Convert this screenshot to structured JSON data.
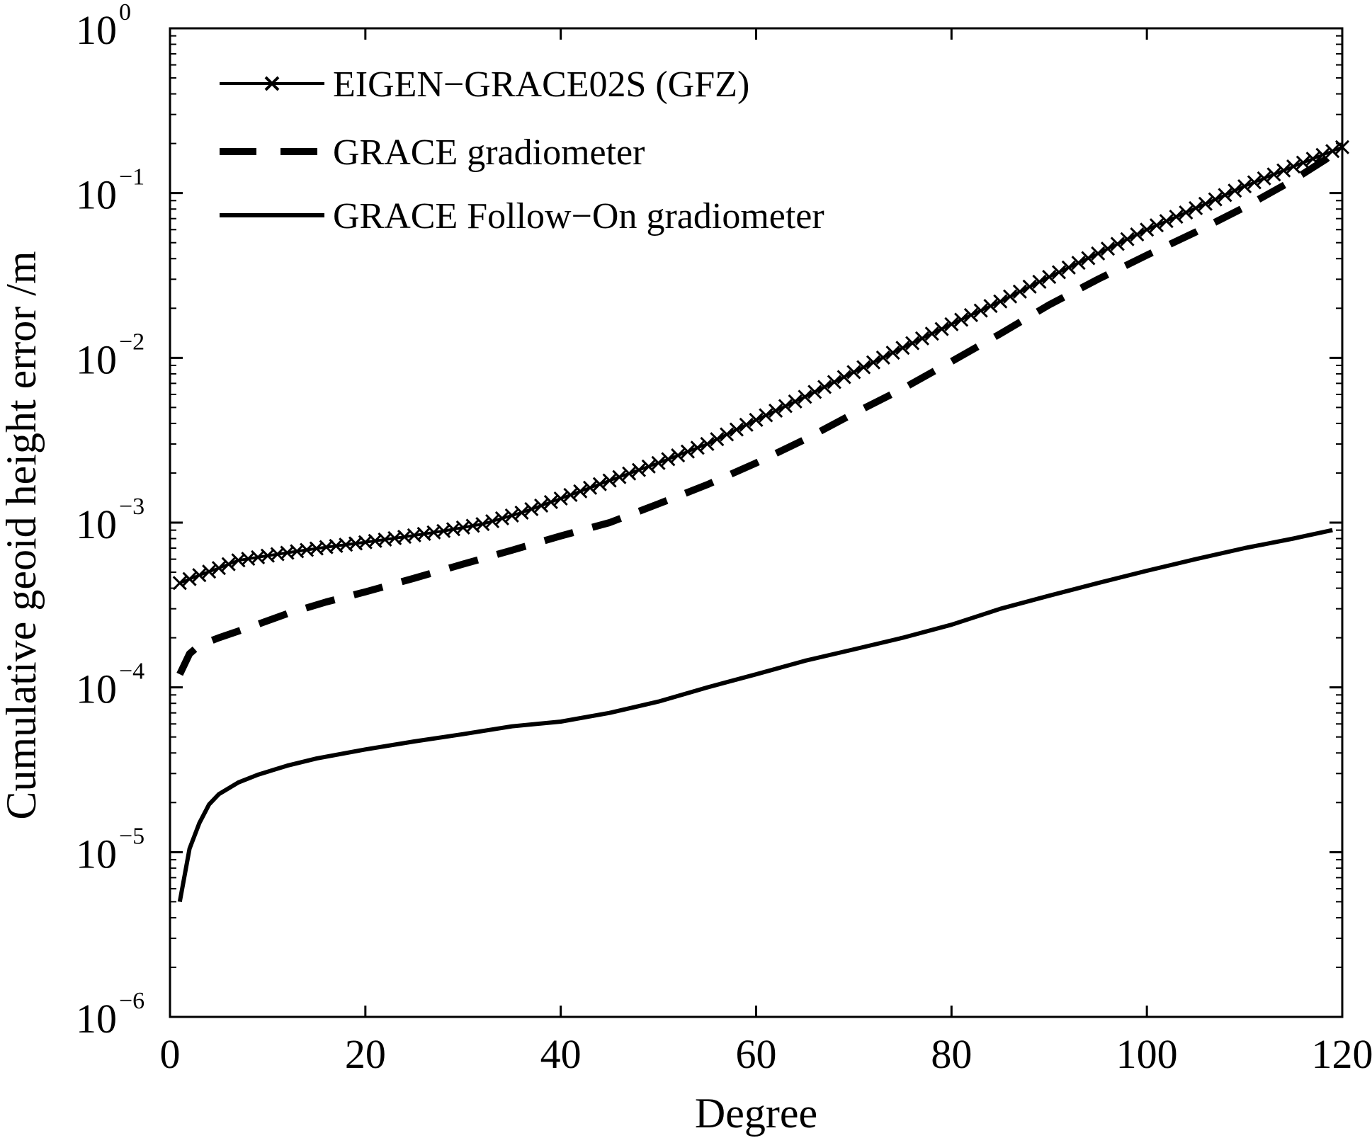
{
  "chart_data": {
    "type": "line",
    "xlabel": "Degree",
    "ylabel": "Cumulative geoid height error  /m",
    "xlim": [
      0,
      120
    ],
    "ylim": [
      1e-06,
      1
    ],
    "yscale": "log",
    "xticks": [
      {
        "value": 0,
        "label": "0"
      },
      {
        "value": 20,
        "label": "20"
      },
      {
        "value": 40,
        "label": "40"
      },
      {
        "value": 60,
        "label": "60"
      },
      {
        "value": 80,
        "label": "80"
      },
      {
        "value": 100,
        "label": "100"
      },
      {
        "value": 120,
        "label": "120"
      }
    ],
    "yticks": [
      {
        "exp": 0,
        "base": "10",
        "sup": "0"
      },
      {
        "exp": -1,
        "base": "10",
        "sup": "−1"
      },
      {
        "exp": -2,
        "base": "10",
        "sup": "−2"
      },
      {
        "exp": -3,
        "base": "10",
        "sup": "−3"
      },
      {
        "exp": -4,
        "base": "10",
        "sup": "−4"
      },
      {
        "exp": -5,
        "base": "10",
        "sup": "−5"
      },
      {
        "exp": -6,
        "base": "10",
        "sup": "−6"
      }
    ],
    "grid": false,
    "legend_position": "top-left",
    "series": [
      {
        "name": "EIGEN−GRACE02S (GFZ)",
        "style": "solid-x-markers",
        "color": "#000000",
        "points": [
          [
            1,
            0.00043
          ],
          [
            3,
            0.00048
          ],
          [
            5,
            0.00053
          ],
          [
            7,
            0.00059
          ],
          [
            10,
            0.00063
          ],
          [
            13,
            0.00067
          ],
          [
            16,
            0.00071
          ],
          [
            20,
            0.00076
          ],
          [
            24,
            0.00082
          ],
          [
            28,
            0.00089
          ],
          [
            32,
            0.00098
          ],
          [
            36,
            0.00115
          ],
          [
            40,
            0.0014
          ],
          [
            45,
            0.0018
          ],
          [
            50,
            0.0023
          ],
          [
            55,
            0.003
          ],
          [
            60,
            0.0042
          ],
          [
            65,
            0.0058
          ],
          [
            70,
            0.0082
          ],
          [
            75,
            0.0115
          ],
          [
            80,
            0.016
          ],
          [
            85,
            0.022
          ],
          [
            90,
            0.031
          ],
          [
            95,
            0.043
          ],
          [
            100,
            0.06
          ],
          [
            105,
            0.081
          ],
          [
            110,
            0.11
          ],
          [
            115,
            0.145
          ],
          [
            120,
            0.19
          ]
        ]
      },
      {
        "name": "GRACE gradiometer",
        "style": "dashed",
        "color": "#000000",
        "points": [
          [
            1,
            0.00012
          ],
          [
            2,
            0.00016
          ],
          [
            3,
            0.00018
          ],
          [
            5,
            0.0002
          ],
          [
            8,
            0.00023
          ],
          [
            12,
            0.00028
          ],
          [
            16,
            0.00033
          ],
          [
            20,
            0.00038
          ],
          [
            25,
            0.00046
          ],
          [
            30,
            0.00056
          ],
          [
            35,
            0.00068
          ],
          [
            40,
            0.00083
          ],
          [
            45,
            0.001
          ],
          [
            50,
            0.0013
          ],
          [
            55,
            0.0017
          ],
          [
            60,
            0.0023
          ],
          [
            65,
            0.0032
          ],
          [
            70,
            0.0046
          ],
          [
            75,
            0.0065
          ],
          [
            80,
            0.0095
          ],
          [
            85,
            0.014
          ],
          [
            90,
            0.021
          ],
          [
            95,
            0.03
          ],
          [
            100,
            0.042
          ],
          [
            105,
            0.058
          ],
          [
            110,
            0.082
          ],
          [
            115,
            0.12
          ],
          [
            119,
            0.17
          ]
        ]
      },
      {
        "name": "GRACE Follow−On gradiometer",
        "style": "solid",
        "color": "#000000",
        "points": [
          [
            1,
            5e-06
          ],
          [
            2,
            1.05e-05
          ],
          [
            3,
            1.5e-05
          ],
          [
            4,
            1.95e-05
          ],
          [
            5,
            2.25e-05
          ],
          [
            7,
            2.65e-05
          ],
          [
            9,
            2.95e-05
          ],
          [
            12,
            3.35e-05
          ],
          [
            15,
            3.7e-05
          ],
          [
            20,
            4.2e-05
          ],
          [
            25,
            4.7e-05
          ],
          [
            30,
            5.2e-05
          ],
          [
            35,
            5.8e-05
          ],
          [
            40,
            6.2e-05
          ],
          [
            45,
            7e-05
          ],
          [
            50,
            8.2e-05
          ],
          [
            55,
            0.0001
          ],
          [
            60,
            0.00012
          ],
          [
            65,
            0.000145
          ],
          [
            70,
            0.00017
          ],
          [
            75,
            0.0002
          ],
          [
            80,
            0.00024
          ],
          [
            85,
            0.0003
          ],
          [
            90,
            0.00036
          ],
          [
            95,
            0.00043
          ],
          [
            100,
            0.00051
          ],
          [
            105,
            0.0006
          ],
          [
            110,
            0.0007
          ],
          [
            115,
            0.0008
          ],
          [
            119,
            0.0009
          ]
        ]
      }
    ]
  }
}
